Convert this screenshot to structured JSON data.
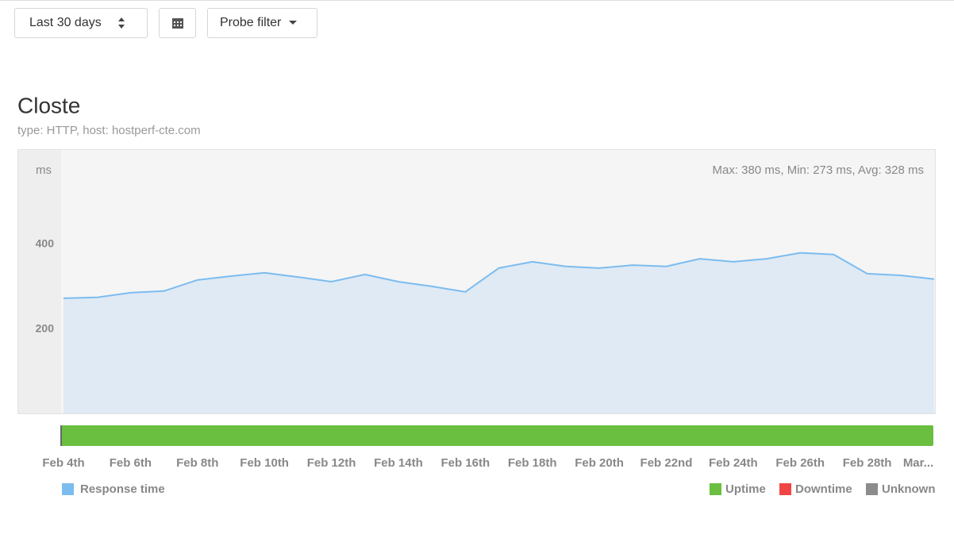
{
  "toolbar": {
    "range_button": "Last 30 days",
    "probe_filter": "Probe filter"
  },
  "chart_data": {
    "type": "area",
    "title": "Closte",
    "subtitle": "type: HTTP, host: hostperf-cte.com",
    "y_label": "ms",
    "stats": "Max: 380 ms, Min: 273 ms, Avg: 328 ms",
    "categories": [
      "Feb 4th",
      null,
      "Feb 6th",
      null,
      "Feb 8th",
      null,
      "Feb 10th",
      null,
      "Feb 12th",
      null,
      "Feb 14th",
      null,
      "Feb 16th",
      null,
      "Feb 18th",
      null,
      "Feb 20th",
      null,
      "Feb 22nd",
      null,
      "Feb 24th",
      null,
      "Feb 26th",
      null,
      "Feb 28th",
      null,
      "Mar..."
    ],
    "series": [
      {
        "name": "Response time",
        "color": "#7cbcef",
        "values": [
          273,
          275,
          286,
          290,
          316,
          325,
          333,
          323,
          312,
          329,
          312,
          301,
          288,
          344,
          359,
          348,
          344,
          351,
          348,
          366,
          359,
          366,
          380,
          376,
          331,
          327,
          318
        ]
      }
    ],
    "status_legend": [
      {
        "name": "Uptime",
        "color": "#6abf40"
      },
      {
        "name": "Downtime",
        "color": "#f04545"
      },
      {
        "name": "Unknown",
        "color": "#8c8c8c"
      }
    ],
    "ylim": [
      0,
      624
    ],
    "yticks": [
      200,
      400
    ],
    "grid": false
  }
}
